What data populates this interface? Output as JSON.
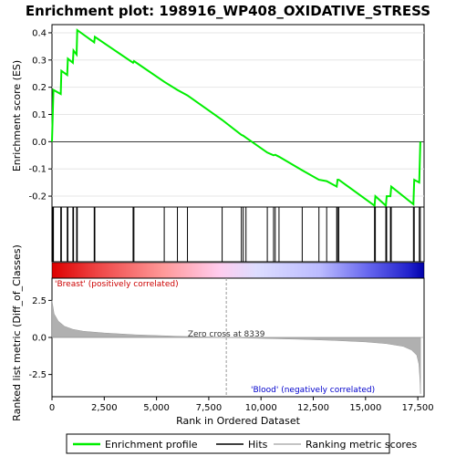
{
  "chart_data": {
    "type": "line",
    "title": "Enrichment plot: 198916_WP408_OXIDATIVE_STRESS",
    "es_panel": {
      "ylabel": "Enrichment score (ES)",
      "ylim": [
        -0.24,
        0.43
      ],
      "yticks": [
        -0.2,
        -0.1,
        0.0,
        0.1,
        0.2,
        0.3,
        0.4
      ],
      "series": [
        {
          "name": "Enrichment profile",
          "color": "#00ee00",
          "x": [
            0,
            70,
            420,
            450,
            730,
            760,
            1000,
            1030,
            1180,
            1210,
            2020,
            2050,
            3880,
            3920,
            5370,
            6000,
            6480,
            8140,
            9060,
            9150,
            9280,
            10300,
            10600,
            10680,
            10860,
            11970,
            12770,
            13140,
            13620,
            13660,
            13720,
            15430,
            15470,
            15970,
            16010,
            16190,
            16230,
            17290,
            17330,
            17570,
            17620
          ],
          "y": [
            0.0,
            0.19,
            0.175,
            0.26,
            0.245,
            0.305,
            0.29,
            0.335,
            0.32,
            0.41,
            0.365,
            0.385,
            0.29,
            0.296,
            0.22,
            0.19,
            0.17,
            0.08,
            0.025,
            0.022,
            0.015,
            -0.04,
            -0.05,
            -0.048,
            -0.055,
            -0.105,
            -0.14,
            -0.145,
            -0.165,
            -0.14,
            -0.14,
            -0.235,
            -0.2,
            -0.235,
            -0.2,
            -0.2,
            -0.165,
            -0.23,
            -0.14,
            -0.15,
            0.0
          ]
        }
      ]
    },
    "hits": [
      40,
      70,
      420,
      450,
      730,
      760,
      1000,
      1030,
      1180,
      1210,
      2020,
      2050,
      3880,
      3920,
      5370,
      6000,
      6480,
      8140,
      9060,
      9150,
      9280,
      10300,
      10600,
      10680,
      10860,
      11970,
      12770,
      13140,
      13620,
      13660,
      13720,
      15430,
      15470,
      15970,
      16010,
      16190,
      16230,
      17290,
      17330,
      17570,
      17620
    ],
    "metric_panel": {
      "ylabel": "Ranked list metric (Diff_of_Classes)",
      "xlabel": "Rank in Ordered Dataset",
      "ylim": [
        -4.0,
        4.0
      ],
      "yticks": [
        -2.5,
        0.0,
        2.5
      ],
      "xlim": [
        0,
        17800
      ],
      "xticks": [
        0,
        2500,
        5000,
        7500,
        10000,
        12500,
        15000,
        17500
      ],
      "profile_x": [
        0,
        100,
        300,
        600,
        1000,
        1500,
        2500,
        4000,
        6000,
        8339,
        10000,
        12000,
        13500,
        15000,
        16000,
        16800,
        17200,
        17450,
        17550,
        17600,
        17630
      ],
      "profile_y": [
        2.5,
        1.6,
        1.1,
        0.75,
        0.55,
        0.42,
        0.3,
        0.18,
        0.08,
        0.0,
        -0.06,
        -0.13,
        -0.2,
        -0.3,
        -0.42,
        -0.6,
        -0.85,
        -1.2,
        -1.8,
        -2.8,
        -3.8
      ],
      "zero_cross_label": "Zero cross at 8339",
      "zero_cross": 8339,
      "positive_label": "'Breast' (positively correlated)",
      "negative_label": "'Blood' (negatively correlated)"
    },
    "legend": {
      "placement": "bottom",
      "entries": [
        "Enrichment profile",
        "Hits",
        "Ranking metric scores"
      ]
    },
    "colors": {
      "profile": "#00ee00",
      "hits": "#000000",
      "metric": "#b0b0b0",
      "positive_text": "#cc0000",
      "negative_text": "#0000cc"
    }
  }
}
